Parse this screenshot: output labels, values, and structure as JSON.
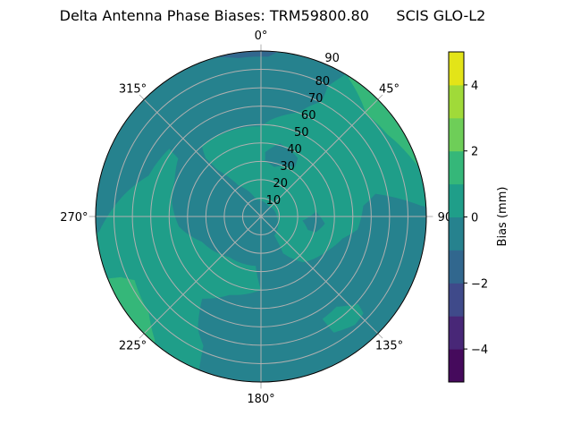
{
  "chart_data": {
    "type": "polar-contour",
    "title": "Delta Antenna Phase Biases: TRM59800.80      SCIS GLO-L2",
    "angular_axis": {
      "direction": "clockwise",
      "zero": "north",
      "tick_labels": [
        "0°",
        "45°",
        "90°",
        "135°",
        "180°",
        "225°",
        "270°",
        "315°"
      ],
      "tick_values": [
        0,
        45,
        90,
        135,
        180,
        225,
        270,
        315
      ]
    },
    "radial_axis": {
      "range": [
        0,
        90
      ],
      "tick_values": [
        10,
        20,
        30,
        40,
        50,
        60,
        70,
        80,
        90
      ],
      "tick_labels": [
        "10",
        "20",
        "30",
        "40",
        "50",
        "60",
        "70",
        "80",
        "90"
      ],
      "grid": true
    },
    "colorbar": {
      "label": "Bias (mm)",
      "colormap": "viridis",
      "range": [
        -5,
        5
      ],
      "levels": [
        -5,
        -4,
        -3,
        -2,
        -1,
        0,
        1,
        2,
        3,
        4,
        5
      ],
      "level_colors": [
        "#450a5c",
        "#482777",
        "#3f4a8a",
        "#31678e",
        "#26828e",
        "#1f9e89",
        "#35b779",
        "#6ece58",
        "#a0da39",
        "#e3e418"
      ],
      "tick_values": [
        -4,
        -2,
        0,
        2,
        4
      ],
      "tick_labels": [
        "−4",
        "−2",
        "0",
        "2",
        "4"
      ]
    },
    "background_level": [
      -1,
      0
    ],
    "regions": [
      {
        "level": [
          -2,
          -1
        ],
        "points": [
          [
            344,
            90
          ],
          [
            352,
            87
          ],
          [
            2.6,
            87
          ],
          [
            6,
            90
          ]
        ]
      },
      {
        "level": [
          0,
          1
        ],
        "points": [
          [
            263,
            90
          ],
          [
            279.5,
            75
          ],
          [
            290,
            65
          ],
          [
            306.5,
            62
          ],
          [
            305,
            55
          ],
          [
            293,
            51
          ],
          [
            279,
            49
          ],
          [
            263,
            45
          ],
          [
            247,
            35
          ],
          [
            218,
            28
          ],
          [
            186,
            27
          ],
          [
            180,
            40
          ],
          [
            202,
            46
          ],
          [
            215.6,
            55
          ],
          [
            209.4,
            70
          ],
          [
            204,
            77
          ],
          [
            202,
            90
          ],
          [
            225,
            90
          ],
          [
            245,
            90
          ]
        ]
      },
      {
        "level": [
          1,
          2
        ],
        "points": [
          [
            246.6,
            83
          ],
          [
            243.3,
            77
          ],
          [
            229.3,
            80.5
          ],
          [
            220.7,
            88.6
          ],
          [
            220,
            90
          ],
          [
            235,
            90
          ],
          [
            248,
            90
          ]
        ]
      },
      {
        "level": [
          0,
          1
        ],
        "points": [
          [
            320,
            50
          ],
          [
            339.7,
            49.5
          ],
          [
            0,
            49
          ],
          [
            6,
            53
          ],
          [
            19.7,
            60
          ],
          [
            27.9,
            71
          ],
          [
            27.2,
            79.5
          ],
          [
            30.8,
            90
          ],
          [
            60,
            90
          ],
          [
            87,
            90
          ],
          [
            78.8,
            63.5
          ],
          [
            84,
            56
          ],
          [
            97.7,
            53
          ],
          [
            105,
            46
          ],
          [
            117,
            40.8
          ],
          [
            137,
            34
          ],
          [
            149,
            23.4
          ],
          [
            145,
            12.6
          ],
          [
            94,
            8.8
          ],
          [
            33.7,
            7
          ],
          [
            344,
            9.5
          ],
          [
            324,
            21
          ],
          [
            317,
            34.7
          ],
          [
            316.5,
            43.8
          ]
        ]
      },
      {
        "level": [
          -1,
          0
        ],
        "points": [
          [
            3.7,
            35
          ],
          [
            14.6,
            41
          ],
          [
            32.3,
            37.6
          ],
          [
            34.5,
            32.6
          ],
          [
            14.8,
            27.9
          ],
          [
            4.3,
            30
          ]
        ]
      },
      {
        "level": [
          -1,
          0
        ],
        "points": [
          [
            95.7,
            22.7
          ],
          [
            85,
            30
          ],
          [
            96.4,
            35
          ],
          [
            106,
            31
          ],
          [
            106,
            26.5
          ]
        ]
      },
      {
        "level": [
          1,
          2
        ],
        "points": [
          [
            31,
            90
          ],
          [
            45.7,
            80
          ],
          [
            57,
            82
          ],
          [
            68.7,
            87.7
          ],
          [
            72.6,
            90
          ],
          [
            60,
            90
          ],
          [
            45,
            90
          ]
        ]
      },
      {
        "level": [
          0,
          1
        ],
        "points": [
          [
            149,
            65
          ],
          [
            140,
            64
          ],
          [
            132,
            71
          ],
          [
            133.3,
            76.7
          ],
          [
            139,
            78
          ],
          [
            147.9,
            74.5
          ]
        ]
      }
    ]
  }
}
